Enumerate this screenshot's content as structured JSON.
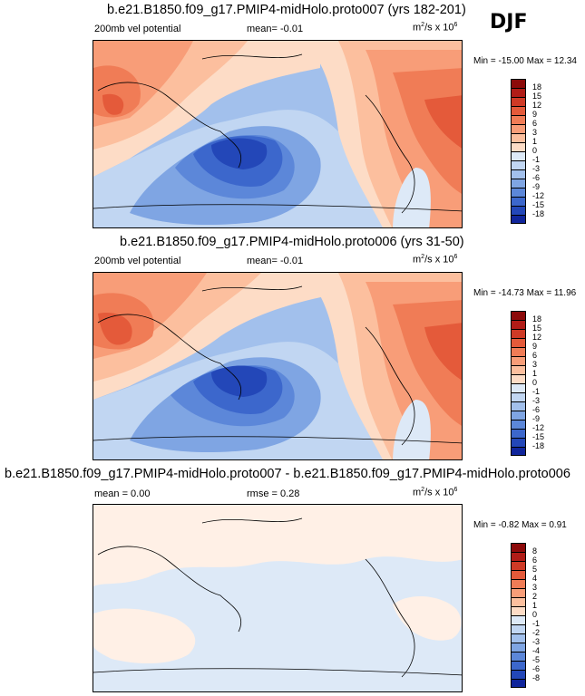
{
  "season": "DJF",
  "colors": {
    "positive": [
      "#fff0e6",
      "#fddcc6",
      "#fcbf9e",
      "#f89d78",
      "#f07c56",
      "#e45a3a",
      "#cf3a26",
      "#b01c17",
      "#8c0a0a"
    ],
    "negative": [
      "#dde9f7",
      "#c1d6f2",
      "#a2c0ec",
      "#7fa5e3",
      "#5c87d9",
      "#3c67cc",
      "#2347b8",
      "#10259b",
      "#06127a"
    ]
  },
  "panels": [
    {
      "title": "b.e21.B1850.f09_g17.PMIP4-midHolo.proto007 (yrs 182-201)",
      "left": "200mb vel potential",
      "center": "mean=  -0.01",
      "units_base": "m",
      "units_sup1": "2",
      "units_mid": "/s x 10",
      "units_sup2": "6",
      "minmax": "Min = -15.00 Max =  12.34",
      "levels": [
        "18",
        "15",
        "12",
        "9",
        "6",
        "3",
        "1",
        "0",
        "-1",
        "-3",
        "-6",
        "-9",
        "-12",
        "-15",
        "-18"
      ]
    },
    {
      "title": "b.e21.B1850.f09_g17.PMIP4-midHolo.proto006 (yrs 31-50)",
      "left": "200mb vel potential",
      "center": "mean=  -0.01",
      "units_base": "m",
      "units_sup1": "2",
      "units_mid": "/s x 10",
      "units_sup2": "6",
      "minmax": "Min = -14.73 Max =  11.96",
      "levels": [
        "18",
        "15",
        "12",
        "9",
        "6",
        "3",
        "1",
        "0",
        "-1",
        "-3",
        "-6",
        "-9",
        "-12",
        "-15",
        "-18"
      ]
    },
    {
      "title": "b.e21.B1850.f09_g17.PMIP4-midHolo.proto007 - b.e21.B1850.f09_g17.PMIP4-midHolo.proto006",
      "left": "mean =  0.00",
      "center": "rmse =  0.28",
      "units_base": "m",
      "units_sup1": "2",
      "units_mid": "/s x 10",
      "units_sup2": "6",
      "minmax": "Min = -0.82 Max =  0.91",
      "levels": [
        "8",
        "6",
        "5",
        "4",
        "3",
        "2",
        "1",
        "0",
        "-1",
        "-2",
        "-3",
        "-4",
        "-5",
        "-6",
        "-8"
      ]
    }
  ],
  "chart_data": [
    {
      "type": "heatmap",
      "title": "b.e21.B1850.f09_g17.PMIP4-midHolo.proto007 (yrs 182-201)",
      "variable": "200mb vel potential",
      "units": "m2/s x 10^6",
      "mean": -0.01,
      "min": -15.0,
      "max": 12.34,
      "contour_levels": [
        -18,
        -15,
        -12,
        -9,
        -6,
        -3,
        -1,
        0,
        1,
        3,
        6,
        9,
        12,
        15,
        18
      ]
    },
    {
      "type": "heatmap",
      "title": "b.e21.B1850.f09_g17.PMIP4-midHolo.proto006 (yrs 31-50)",
      "variable": "200mb vel potential",
      "units": "m2/s x 10^6",
      "mean": -0.01,
      "min": -14.73,
      "max": 11.96,
      "contour_levels": [
        -18,
        -15,
        -12,
        -9,
        -6,
        -3,
        -1,
        0,
        1,
        3,
        6,
        9,
        12,
        15,
        18
      ]
    },
    {
      "type": "heatmap",
      "title": "b.e21.B1850.f09_g17.PMIP4-midHolo.proto007 - b.e21.B1850.f09_g17.PMIP4-midHolo.proto006",
      "units": "m2/s x 10^6",
      "mean": 0.0,
      "rmse": 0.28,
      "min": -0.82,
      "max": 0.91,
      "contour_levels": [
        -8,
        -6,
        -5,
        -4,
        -3,
        -2,
        -1,
        0,
        1,
        2,
        3,
        4,
        5,
        6,
        8
      ]
    }
  ]
}
